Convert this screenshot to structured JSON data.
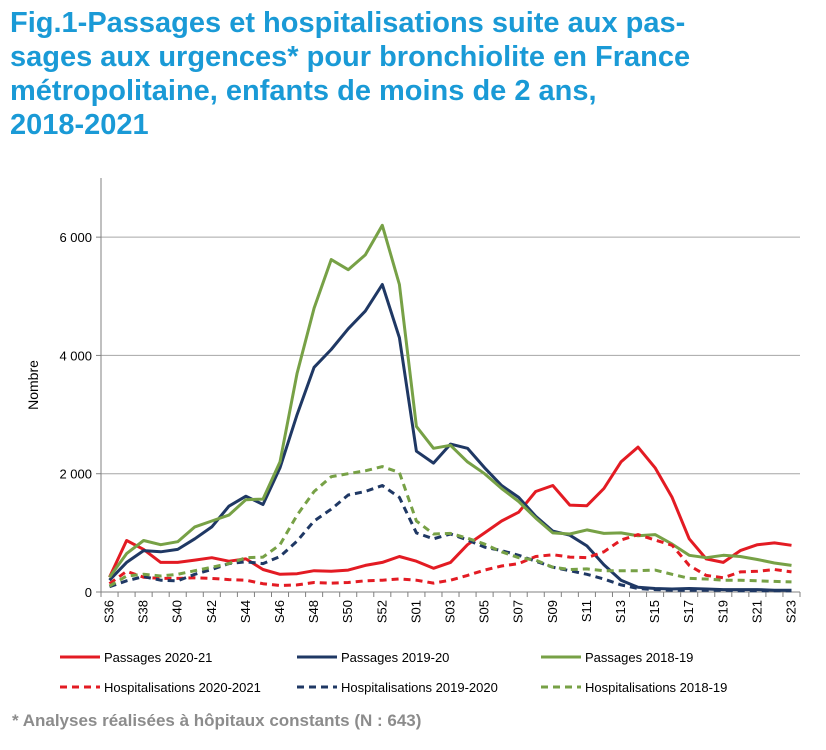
{
  "title_lines": [
    "Fig.1-Passages et hospitalisations suite aux pas-",
    "sages aux urgences* pour bronchiolite en France",
    "métropolitaine, enfants de moins de 2 ans,",
    "2018-2021"
  ],
  "footnote": "* Analyses réalisées à hôpitaux constants (N : 643)",
  "chart_data": {
    "type": "line",
    "ylabel": "Nombre",
    "xlabel": "",
    "ylim": [
      0,
      7000
    ],
    "yticks": [
      0,
      2000,
      4000,
      6000
    ],
    "ytick_labels": [
      "0",
      "2 000",
      "4 000",
      "6 000"
    ],
    "grid": "horizontal",
    "legend_position": "bottom",
    "x": [
      "S36",
      "S37",
      "S38",
      "S39",
      "S40",
      "S41",
      "S42",
      "S43",
      "S44",
      "S45",
      "S46",
      "S47",
      "S48",
      "S49",
      "S50",
      "S51",
      "S52",
      "S53",
      "S01",
      "S02",
      "S03",
      "S04",
      "S05",
      "S06",
      "S07",
      "S08",
      "S09",
      "S10",
      "S11",
      "S12",
      "S13",
      "S14",
      "S15",
      "S16",
      "S17",
      "S18",
      "S19",
      "S20",
      "S21",
      "S22",
      "S23"
    ],
    "x_tick_labels": [
      "S36",
      "S38",
      "S40",
      "S42",
      "S44",
      "S46",
      "S48",
      "S50",
      "S52",
      "S01",
      "S03",
      "S05",
      "S07",
      "S09",
      "S11",
      "S13",
      "S15",
      "S17",
      "S19",
      "S21",
      "S23"
    ],
    "series": [
      {
        "name": "Passages 2020-21",
        "color": "#e31b23",
        "dash": false,
        "values": [
          250,
          870,
          720,
          500,
          500,
          540,
          580,
          520,
          560,
          380,
          300,
          310,
          360,
          350,
          370,
          450,
          500,
          600,
          520,
          400,
          500,
          800,
          1000,
          1200,
          1350,
          1700,
          1800,
          1470,
          1460,
          1750,
          2200,
          2450,
          2100,
          1600,
          900,
          560,
          500,
          700,
          800,
          830,
          790
        ]
      },
      {
        "name": "Passages 2019-20",
        "color": "#1f3864",
        "dash": false,
        "values": [
          200,
          500,
          700,
          680,
          720,
          900,
          1100,
          1450,
          1620,
          1480,
          2100,
          3000,
          3800,
          4100,
          4450,
          4750,
          5200,
          4300,
          2380,
          2180,
          2500,
          2430,
          2100,
          1800,
          1600,
          1280,
          1030,
          960,
          780,
          460,
          200,
          80,
          60,
          50,
          60,
          50,
          40,
          40,
          40,
          30,
          30
        ]
      },
      {
        "name": "Passages 2018-19",
        "color": "#77a146",
        "dash": false,
        "values": [
          250,
          650,
          870,
          800,
          850,
          1100,
          1200,
          1300,
          1560,
          1570,
          2200,
          3700,
          4800,
          5620,
          5450,
          5700,
          6200,
          5200,
          2800,
          2430,
          2480,
          2200,
          2000,
          1750,
          1530,
          1250,
          1000,
          980,
          1050,
          990,
          1000,
          950,
          970,
          810,
          620,
          580,
          620,
          600,
          550,
          490,
          450
        ]
      },
      {
        "name": "Hospitalisations 2020-2021",
        "color": "#e31b23",
        "dash": true,
        "values": [
          140,
          350,
          250,
          230,
          230,
          240,
          230,
          210,
          200,
          140,
          110,
          120,
          160,
          150,
          160,
          190,
          200,
          220,
          200,
          150,
          200,
          280,
          370,
          440,
          480,
          600,
          630,
          590,
          580,
          680,
          880,
          970,
          880,
          790,
          450,
          280,
          240,
          340,
          350,
          380,
          340
        ]
      },
      {
        "name": "Hospitalisations 2019-2020",
        "color": "#1f3864",
        "dash": true,
        "values": [
          90,
          190,
          260,
          200,
          190,
          300,
          380,
          480,
          510,
          480,
          600,
          860,
          1200,
          1400,
          1640,
          1700,
          1800,
          1600,
          1000,
          900,
          980,
          880,
          760,
          700,
          620,
          520,
          420,
          360,
          300,
          220,
          120,
          60,
          40,
          30,
          30,
          30,
          30,
          20,
          20,
          20,
          20
        ]
      },
      {
        "name": "Hospitalisations 2018-19",
        "color": "#77a146",
        "dash": true,
        "values": [
          100,
          270,
          300,
          270,
          300,
          360,
          420,
          480,
          580,
          590,
          800,
          1300,
          1700,
          1950,
          2000,
          2050,
          2120,
          2020,
          1200,
          980,
          990,
          910,
          810,
          680,
          580,
          540,
          420,
          380,
          390,
          360,
          360,
          360,
          370,
          300,
          230,
          220,
          200,
          200,
          190,
          180,
          170
        ]
      }
    ]
  }
}
